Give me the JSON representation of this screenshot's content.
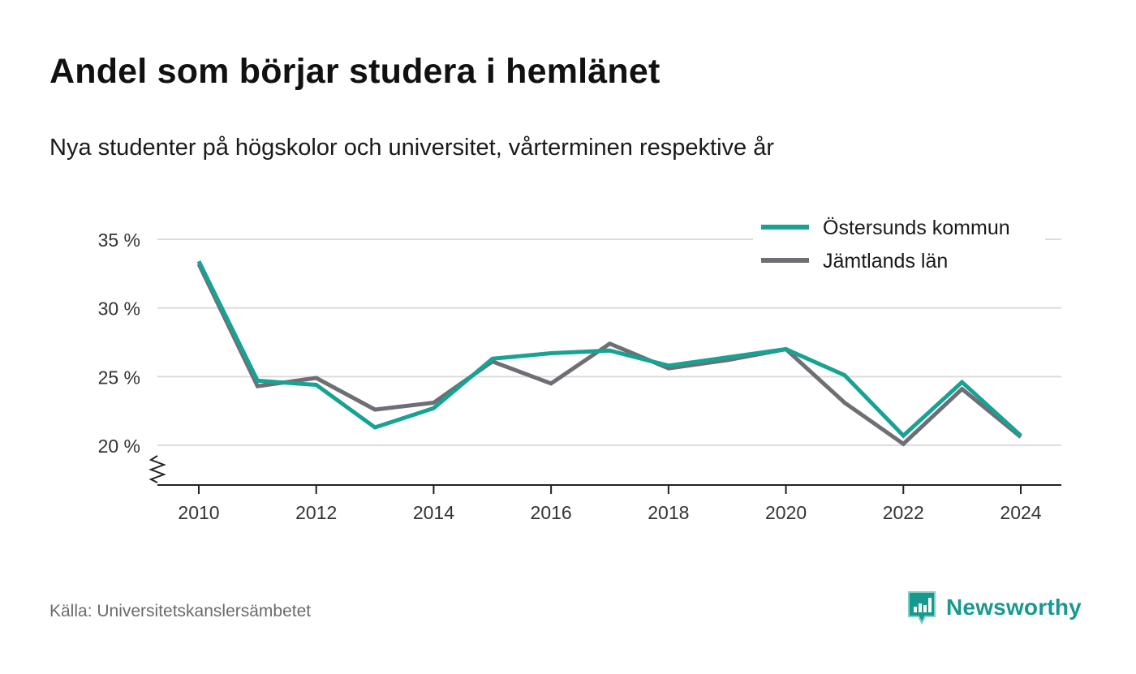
{
  "title": "Andel som börjar studera i hemlänet",
  "subtitle": "Nya studenter på högskolor och universitet, vårterminen respektive år",
  "source": "Källa: Universitetskanslersämbetet",
  "brand": {
    "name": "Newsworthy",
    "icon": "newsworthy-logo-icon",
    "color": "#17998f"
  },
  "chart_data": {
    "type": "line",
    "x": [
      2010,
      2011,
      2012,
      2013,
      2014,
      2015,
      2016,
      2017,
      2018,
      2019,
      2020,
      2021,
      2022,
      2023,
      2024
    ],
    "xticks": [
      2010,
      2012,
      2014,
      2016,
      2018,
      2020,
      2022,
      2024
    ],
    "yticks": [
      20,
      25,
      30,
      35
    ],
    "ytick_labels": [
      "20 %",
      "25 %",
      "30 %",
      "35 %"
    ],
    "ylim": [
      17,
      35
    ],
    "xlim": [
      2009.3,
      2024.7
    ],
    "y_axis_break": true,
    "grid": "horizontal",
    "legend_position": "top-right",
    "series": [
      {
        "name": "Östersunds kommun",
        "color": "#17a394",
        "values": [
          33.4,
          24.7,
          24.4,
          21.3,
          22.7,
          26.3,
          26.7,
          26.9,
          25.8,
          26.4,
          27.0,
          25.1,
          20.7,
          24.6,
          20.7
        ]
      },
      {
        "name": "Jämtlands län",
        "color": "#6e6e74",
        "values": [
          33.2,
          24.3,
          24.9,
          22.6,
          23.1,
          26.1,
          24.5,
          27.4,
          25.6,
          26.2,
          27.0,
          23.1,
          20.1,
          24.1,
          20.6
        ]
      }
    ]
  }
}
